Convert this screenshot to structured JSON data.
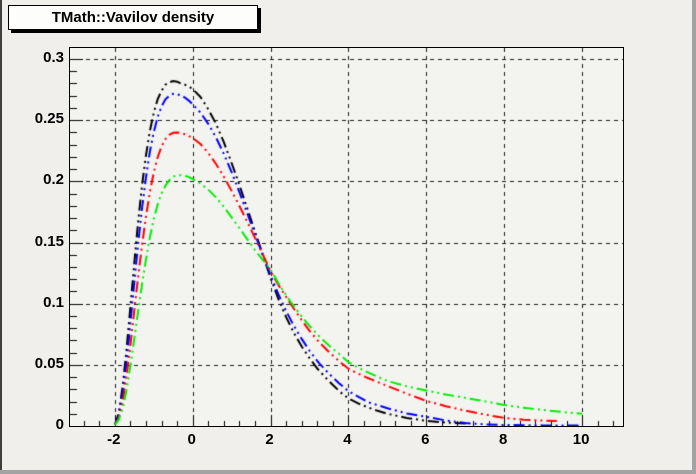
{
  "window": {
    "kind": "ROOT canvas plot"
  },
  "colors": {
    "canvas_background": "#f0efec",
    "frame_background": "#f3f3f0",
    "frame_border": "#000000",
    "grid": "#1a1a1a",
    "title_pave_background": "#fdfdfb",
    "title_pave_shadow": "#000000",
    "edge_shadow": "#a3a3a3"
  },
  "chart_data": {
    "type": "line",
    "title": "TMath::Vavilov density",
    "xlabel": "",
    "ylabel": "",
    "xlim": [
      -3.15,
      11.05
    ],
    "ylim": [
      0,
      0.309
    ],
    "grid": "dashed-at-major-ticks",
    "legend": "none",
    "x_major_ticks": [
      -2,
      0,
      2,
      4,
      6,
      8,
      10
    ],
    "x_tick_labels": [
      "-2",
      "0",
      "2",
      "4",
      "6",
      "8",
      "10"
    ],
    "x_minor_step": 0.4,
    "y_major_ticks": [
      0,
      0.05,
      0.1,
      0.15,
      0.2,
      0.25,
      0.3
    ],
    "y_tick_labels": [
      "0",
      "0.05",
      "0.1",
      "0.15",
      "0.2",
      "0.25",
      "0.3"
    ],
    "y_minor_step": 0.01,
    "line_style": "dash-dot-dot",
    "series": [
      {
        "name": "vavilov-curve-black",
        "color": "#000000",
        "peak": {
          "x": -0.5,
          "y": 0.282
        },
        "points": [
          [
            -2.0,
            0.001
          ],
          [
            -1.9,
            0.01
          ],
          [
            -1.8,
            0.032
          ],
          [
            -1.7,
            0.062
          ],
          [
            -1.6,
            0.097
          ],
          [
            -1.5,
            0.133
          ],
          [
            -1.4,
            0.167
          ],
          [
            -1.3,
            0.197
          ],
          [
            -1.2,
            0.221
          ],
          [
            -1.1,
            0.241
          ],
          [
            -1.0,
            0.256
          ],
          [
            -0.9,
            0.267
          ],
          [
            -0.8,
            0.274
          ],
          [
            -0.7,
            0.279
          ],
          [
            -0.6,
            0.281
          ],
          [
            -0.5,
            0.282
          ],
          [
            -0.4,
            0.2815
          ],
          [
            -0.3,
            0.28
          ],
          [
            -0.2,
            0.279
          ],
          [
            -0.1,
            0.2775
          ],
          [
            0.0,
            0.2755
          ],
          [
            0.2,
            0.269
          ],
          [
            0.4,
            0.259
          ],
          [
            0.6,
            0.247
          ],
          [
            0.8,
            0.232
          ],
          [
            1.0,
            0.215
          ],
          [
            1.2,
            0.197
          ],
          [
            1.4,
            0.178
          ],
          [
            1.6,
            0.159
          ],
          [
            1.8,
            0.14
          ],
          [
            2.0,
            0.121
          ],
          [
            2.2,
            0.104
          ],
          [
            2.4,
            0.089
          ],
          [
            2.6,
            0.076
          ],
          [
            2.8,
            0.065
          ],
          [
            3.0,
            0.0555
          ],
          [
            3.2,
            0.047
          ],
          [
            3.4,
            0.04
          ],
          [
            3.6,
            0.0335
          ],
          [
            3.8,
            0.0275
          ],
          [
            4.0,
            0.0225
          ],
          [
            4.25,
            0.0185
          ],
          [
            4.5,
            0.0152
          ],
          [
            4.75,
            0.0124
          ],
          [
            5.0,
            0.01
          ],
          [
            5.5,
            0.0066
          ],
          [
            6.0,
            0.0042
          ],
          [
            6.5,
            0.0028
          ],
          [
            7.0,
            0.002
          ],
          [
            7.05,
            0.002
          ]
        ]
      },
      {
        "name": "vavilov-curve-blue",
        "color": "#0000ff",
        "peak": {
          "x": -0.5,
          "y": 0.2715
        },
        "points": [
          [
            -2.0,
            0.001
          ],
          [
            -1.9,
            0.008
          ],
          [
            -1.8,
            0.026
          ],
          [
            -1.7,
            0.052
          ],
          [
            -1.6,
            0.084
          ],
          [
            -1.5,
            0.117
          ],
          [
            -1.4,
            0.149
          ],
          [
            -1.3,
            0.178
          ],
          [
            -1.2,
            0.203
          ],
          [
            -1.1,
            0.224
          ],
          [
            -1.0,
            0.24
          ],
          [
            -0.9,
            0.2525
          ],
          [
            -0.8,
            0.261
          ],
          [
            -0.7,
            0.267
          ],
          [
            -0.6,
            0.27
          ],
          [
            -0.5,
            0.2715
          ],
          [
            -0.4,
            0.2712
          ],
          [
            -0.3,
            0.2702
          ],
          [
            -0.2,
            0.2685
          ],
          [
            -0.1,
            0.266
          ],
          [
            0.0,
            0.263
          ],
          [
            0.2,
            0.2562
          ],
          [
            0.4,
            0.247
          ],
          [
            0.6,
            0.2358
          ],
          [
            0.8,
            0.2225
          ],
          [
            1.0,
            0.2075
          ],
          [
            1.2,
            0.1912
          ],
          [
            1.4,
            0.174
          ],
          [
            1.6,
            0.1568
          ],
          [
            1.8,
            0.1398
          ],
          [
            2.0,
            0.1232
          ],
          [
            2.2,
            0.1078
          ],
          [
            2.4,
            0.094
          ],
          [
            2.6,
            0.0818
          ],
          [
            2.8,
            0.0712
          ],
          [
            3.0,
            0.0615
          ],
          [
            3.25,
            0.0512
          ],
          [
            3.5,
            0.0428
          ],
          [
            3.75,
            0.0352
          ],
          [
            4.0,
            0.0285
          ],
          [
            4.5,
            0.0195
          ],
          [
            5.0,
            0.0145
          ],
          [
            5.5,
            0.0103
          ],
          [
            6.0,
            0.0075
          ],
          [
            6.5,
            0.0045
          ],
          [
            7.0,
            0.0024
          ],
          [
            7.5,
            0.0013
          ],
          [
            8.0,
            0.0008
          ],
          [
            9.0,
            0.0005
          ],
          [
            10.0,
            0.0004
          ]
        ]
      },
      {
        "name": "vavilov-curve-red",
        "color": "#ff0000",
        "peak": {
          "x": -0.4,
          "y": 0.24
        },
        "points": [
          [
            -2.0,
            0.001
          ],
          [
            -1.9,
            0.006
          ],
          [
            -1.8,
            0.019
          ],
          [
            -1.7,
            0.04
          ],
          [
            -1.6,
            0.066
          ],
          [
            -1.5,
            0.094
          ],
          [
            -1.4,
            0.122
          ],
          [
            -1.3,
            0.148
          ],
          [
            -1.2,
            0.171
          ],
          [
            -1.1,
            0.191
          ],
          [
            -1.0,
            0.207
          ],
          [
            -0.9,
            0.2195
          ],
          [
            -0.8,
            0.2285
          ],
          [
            -0.7,
            0.2345
          ],
          [
            -0.6,
            0.238
          ],
          [
            -0.5,
            0.2397
          ],
          [
            -0.4,
            0.24
          ],
          [
            -0.3,
            0.2395
          ],
          [
            -0.2,
            0.2385
          ],
          [
            -0.1,
            0.237
          ],
          [
            0.0,
            0.2355
          ],
          [
            0.2,
            0.2305
          ],
          [
            0.4,
            0.2232
          ],
          [
            0.6,
            0.2142
          ],
          [
            0.8,
            0.2038
          ],
          [
            1.0,
            0.1922
          ],
          [
            1.2,
            0.1798
          ],
          [
            1.4,
            0.167
          ],
          [
            1.6,
            0.1538
          ],
          [
            1.8,
            0.1402
          ],
          [
            2.0,
            0.1265
          ],
          [
            2.25,
            0.1128
          ],
          [
            2.5,
            0.1005
          ],
          [
            2.75,
            0.0888
          ],
          [
            3.0,
            0.0778
          ],
          [
            3.25,
            0.0685
          ],
          [
            3.5,
            0.0605
          ],
          [
            3.75,
            0.0532
          ],
          [
            4.0,
            0.0468
          ],
          [
            4.25,
            0.0428
          ],
          [
            4.5,
            0.0392
          ],
          [
            5.0,
            0.0327
          ],
          [
            5.5,
            0.0264
          ],
          [
            6.0,
            0.0205
          ],
          [
            6.5,
            0.0162
          ],
          [
            7.0,
            0.0126
          ],
          [
            7.5,
            0.0094
          ],
          [
            8.0,
            0.0066
          ],
          [
            8.5,
            0.0052
          ],
          [
            9.0,
            0.0044
          ],
          [
            9.35,
            0.004
          ]
        ]
      },
      {
        "name": "vavilov-curve-green",
        "color": "#00ee00",
        "peak": {
          "x": -0.3,
          "y": 0.205
        },
        "points": [
          [
            -2.0,
            0.001
          ],
          [
            -1.9,
            0.005
          ],
          [
            -1.8,
            0.014
          ],
          [
            -1.7,
            0.029
          ],
          [
            -1.6,
            0.049
          ],
          [
            -1.5,
            0.071
          ],
          [
            -1.4,
            0.094
          ],
          [
            -1.3,
            0.116
          ],
          [
            -1.2,
            0.136
          ],
          [
            -1.1,
            0.154
          ],
          [
            -1.0,
            0.169
          ],
          [
            -0.9,
            0.181
          ],
          [
            -0.8,
            0.19
          ],
          [
            -0.7,
            0.1965
          ],
          [
            -0.6,
            0.201
          ],
          [
            -0.5,
            0.2038
          ],
          [
            -0.4,
            0.2048
          ],
          [
            -0.3,
            0.205
          ],
          [
            -0.2,
            0.2045
          ],
          [
            -0.1,
            0.2035
          ],
          [
            0.0,
            0.202
          ],
          [
            0.2,
            0.1982
          ],
          [
            0.4,
            0.1932
          ],
          [
            0.6,
            0.1868
          ],
          [
            0.8,
            0.1792
          ],
          [
            1.0,
            0.1705
          ],
          [
            1.2,
            0.1618
          ],
          [
            1.4,
            0.1528
          ],
          [
            1.6,
            0.1438
          ],
          [
            1.8,
            0.1358
          ],
          [
            2.0,
            0.128
          ],
          [
            2.25,
            0.1142
          ],
          [
            2.5,
            0.1022
          ],
          [
            2.75,
            0.0914
          ],
          [
            3.0,
            0.0818
          ],
          [
            3.25,
            0.0733
          ],
          [
            3.5,
            0.0658
          ],
          [
            3.75,
            0.0592
          ],
          [
            4.0,
            0.0522
          ],
          [
            4.25,
            0.0478
          ],
          [
            4.5,
            0.0438
          ],
          [
            5.0,
            0.0368
          ],
          [
            5.5,
            0.0324
          ],
          [
            6.0,
            0.029
          ],
          [
            6.5,
            0.0258
          ],
          [
            7.0,
            0.023
          ],
          [
            7.5,
            0.0202
          ],
          [
            8.0,
            0.0172
          ],
          [
            8.5,
            0.015
          ],
          [
            9.0,
            0.0131
          ],
          [
            9.5,
            0.0114
          ],
          [
            10.0,
            0.01
          ]
        ]
      }
    ]
  }
}
